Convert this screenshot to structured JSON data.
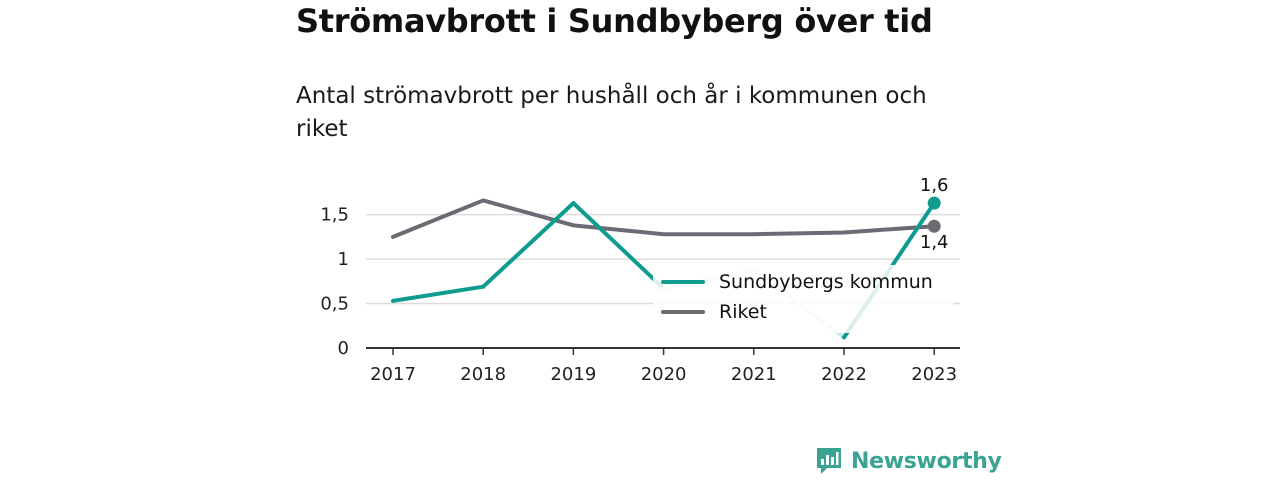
{
  "header": {
    "title": "Strömavbrott i Sundbyberg över tid",
    "subtitle": "Antal strömavbrott per hushåll och år i kommunen och riket"
  },
  "chart_data": {
    "type": "line",
    "title": "Strömavbrott i Sundbyberg över tid",
    "subtitle": "Antal strömavbrott per hushåll och år i kommunen och riket",
    "xlabel": "",
    "ylabel": "",
    "categories": [
      "2017",
      "2018",
      "2019",
      "2020",
      "2021",
      "2022",
      "2023"
    ],
    "ylim": [
      0,
      1.8
    ],
    "yticks": [
      0,
      0.5,
      1,
      1.5
    ],
    "ytick_labels": [
      "0",
      "0,5",
      "1",
      "1,5"
    ],
    "grid": true,
    "legend_position": "bottom-right",
    "series": [
      {
        "name": "Sundbybergs kommun",
        "color": "#0e9c8f",
        "light_color": "#c9ecea",
        "values": [
          0.53,
          0.69,
          1.63,
          0.67,
          0.87,
          0.12,
          1.63
        ],
        "end_label": "1,6"
      },
      {
        "name": "Riket",
        "color": "#6b6b73",
        "values": [
          1.25,
          1.66,
          1.38,
          1.28,
          1.28,
          1.3,
          1.37
        ],
        "end_label": "1,4"
      }
    ]
  },
  "brand": {
    "name": "Newsworthy",
    "color": "#3aa394",
    "icon": "bar-chart-speech-icon"
  }
}
